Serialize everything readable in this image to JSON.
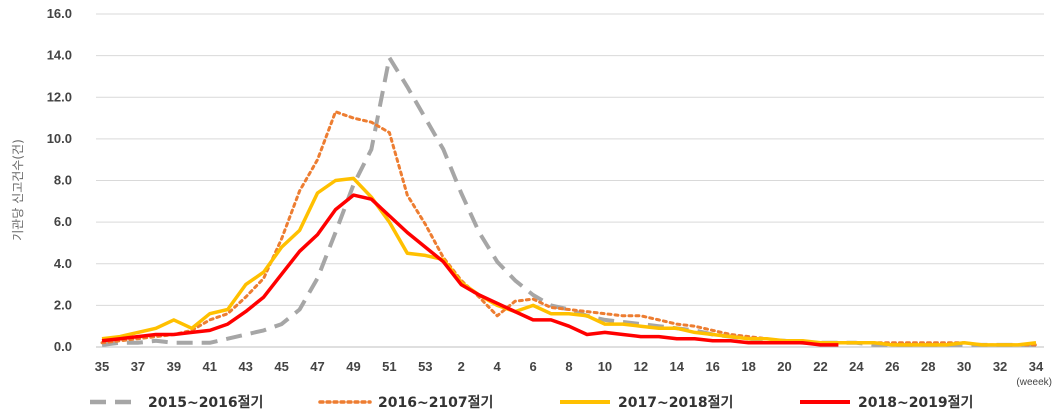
{
  "chart_data": {
    "type": "line",
    "ylabel": "기관당 신고건수(건)",
    "x_unit_label": "(weeek)",
    "ylim": [
      0,
      16
    ],
    "yticks": [
      "0.0",
      "2.0",
      "4.0",
      "6.0",
      "8.0",
      "10.0",
      "12.0",
      "14.0",
      "16.0"
    ],
    "x": [
      35,
      36,
      37,
      38,
      39,
      40,
      41,
      42,
      43,
      44,
      45,
      46,
      47,
      48,
      49,
      50,
      51,
      52,
      53,
      1,
      2,
      3,
      4,
      5,
      6,
      7,
      8,
      9,
      10,
      11,
      12,
      13,
      14,
      15,
      16,
      17,
      18,
      19,
      20,
      21,
      22,
      23,
      24,
      25,
      26,
      27,
      28,
      29,
      30,
      31,
      32,
      33,
      34
    ],
    "xticks": [
      "35",
      "37",
      "39",
      "41",
      "43",
      "45",
      "47",
      "49",
      "51",
      "53",
      "2",
      "4",
      "6",
      "8",
      "10",
      "12",
      "14",
      "16",
      "18",
      "20",
      "22",
      "24",
      "26",
      "28",
      "30",
      "32",
      "34"
    ],
    "grid": "horizontal",
    "legend_position": "bottom",
    "series": [
      {
        "name": "2015~2016절기",
        "color": "#a6a6a6",
        "style": "dashed",
        "values": [
          0.1,
          0.2,
          0.2,
          0.3,
          0.2,
          0.2,
          0.2,
          0.4,
          0.6,
          0.8,
          1.1,
          1.8,
          3.3,
          5.5,
          7.8,
          9.5,
          13.9,
          12.5,
          11.0,
          9.5,
          7.4,
          5.5,
          4.1,
          3.2,
          2.5,
          2.0,
          1.8,
          1.5,
          1.3,
          1.2,
          1.1,
          1.0,
          0.9,
          0.8,
          0.6,
          0.5,
          0.4,
          0.3,
          0.3,
          0.2,
          0.2,
          0.2,
          0.2,
          0.1,
          0.1,
          0.1,
          0.1,
          0.1,
          0.1,
          0.1,
          0.1,
          0.1,
          0.1
        ]
      },
      {
        "name": "2016~2107절기",
        "color": "#ed7d31",
        "style": "dotted",
        "values": [
          0.2,
          0.3,
          0.4,
          0.5,
          0.6,
          0.8,
          1.3,
          1.6,
          2.4,
          3.3,
          5.2,
          7.5,
          9.0,
          11.3,
          11.0,
          10.8,
          10.3,
          7.3,
          5.9,
          4.3,
          3.2,
          2.4,
          1.5,
          2.2,
          2.3,
          1.9,
          1.8,
          1.7,
          1.6,
          1.5,
          1.5,
          1.3,
          1.1,
          1.0,
          0.8,
          0.6,
          0.5,
          0.4,
          0.3,
          0.3,
          0.2,
          0.2,
          0.2,
          0.2,
          0.2,
          0.2,
          0.2,
          0.2,
          0.2,
          0.1,
          0.1,
          0.1,
          0.1
        ]
      },
      {
        "name": "2017~2018절기",
        "color": "#ffc000",
        "style": "solid",
        "values": [
          0.4,
          0.5,
          0.7,
          0.9,
          1.3,
          0.9,
          1.6,
          1.8,
          3.0,
          3.6,
          4.8,
          5.6,
          7.4,
          8.0,
          8.1,
          7.2,
          6.0,
          4.5,
          4.4,
          4.2,
          3.1,
          2.5,
          2.0,
          1.7,
          2.0,
          1.6,
          1.6,
          1.5,
          1.1,
          1.1,
          1.0,
          0.9,
          0.9,
          0.7,
          0.6,
          0.5,
          0.4,
          0.4,
          0.3,
          0.3,
          0.2,
          0.2,
          0.2,
          0.2,
          0.1,
          0.1,
          0.1,
          0.1,
          0.2,
          0.1,
          0.1,
          0.1,
          0.2
        ]
      },
      {
        "name": "2018~2019절기",
        "color": "#ff0000",
        "style": "solid",
        "values": [
          0.3,
          0.4,
          0.5,
          0.6,
          0.6,
          0.7,
          0.8,
          1.1,
          1.7,
          2.4,
          3.5,
          4.6,
          5.4,
          6.6,
          7.3,
          7.1,
          6.3,
          5.5,
          4.8,
          4.1,
          3.0,
          2.5,
          2.1,
          1.7,
          1.3,
          1.3,
          1.0,
          0.6,
          0.7,
          0.6,
          0.5,
          0.5,
          0.4,
          0.4,
          0.3,
          0.3,
          0.2,
          0.2,
          0.2,
          0.2,
          0.1,
          0.1,
          null,
          null,
          null,
          null,
          null,
          null,
          null,
          null,
          null,
          null,
          null
        ]
      }
    ]
  }
}
